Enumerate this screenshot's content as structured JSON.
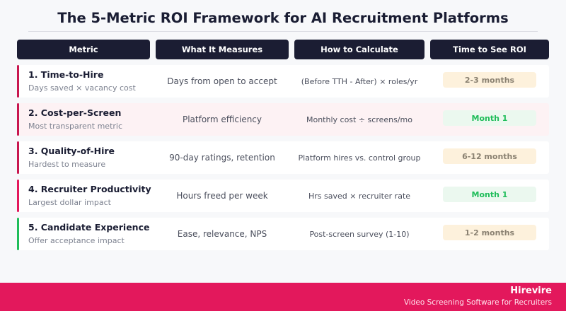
{
  "title": "The 5-Metric ROI Framework for AI Recruitment Platforms",
  "headers": [
    "Metric",
    "What It Measures",
    "How to Calculate",
    "Time to See ROI"
  ],
  "rows": [
    {
      "name": "1. Time-to-Hire",
      "sub": "Days saved × vacancy cost",
      "measures": "Days from open to accept",
      "calc": "(Before TTH - After) × roles/yr",
      "time": "2-3 months",
      "accent": "#c8174f",
      "badge_bg": "#fdf1dc",
      "badge_fg": "#8a8171",
      "highlight": false
    },
    {
      "name": "2. Cost-per-Screen",
      "sub": "Most transparent metric",
      "measures": "Platform efficiency",
      "calc": "Monthly cost ÷ screens/mo",
      "time": "Month 1",
      "accent": "#c8174f",
      "badge_bg": "#ebf8ef",
      "badge_fg": "#1fbd5a",
      "highlight": true
    },
    {
      "name": "3. Quality-of-Hire",
      "sub": "Hardest to measure",
      "measures": "90-day ratings, retention",
      "calc": "Platform hires vs. control group",
      "time": "6-12 months",
      "accent": "#c8174f",
      "badge_bg": "#fdf1dc",
      "badge_fg": "#8a8171",
      "highlight": false
    },
    {
      "name": "4. Recruiter Productivity",
      "sub": "Largest dollar impact",
      "measures": "Hours freed per week",
      "calc": "Hrs saved × recruiter rate",
      "time": "Month 1",
      "accent": "#e3185c",
      "badge_bg": "#ebf8ef",
      "badge_fg": "#1fbd5a",
      "highlight": false
    },
    {
      "name": "5. Candidate Experience",
      "sub": "Offer acceptance impact",
      "measures": "Ease, relevance, NPS",
      "calc": "Post-screen survey (1-10)",
      "time": "1-2 months",
      "accent": "#1fbd5a",
      "badge_bg": "#fdf1dc",
      "badge_fg": "#8a8171",
      "highlight": false
    }
  ],
  "footer": {
    "brand": "Hirevire",
    "tagline": "Video Screening Software for Recruiters"
  }
}
